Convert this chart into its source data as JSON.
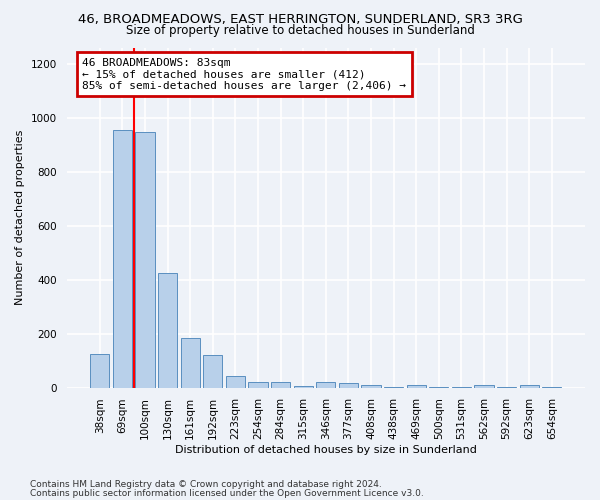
{
  "title_line1": "46, BROADMEADOWS, EAST HERRINGTON, SUNDERLAND, SR3 3RG",
  "title_line2": "Size of property relative to detached houses in Sunderland",
  "xlabel": "Distribution of detached houses by size in Sunderland",
  "ylabel": "Number of detached properties",
  "categories": [
    "38sqm",
    "69sqm",
    "100sqm",
    "130sqm",
    "161sqm",
    "192sqm",
    "223sqm",
    "254sqm",
    "284sqm",
    "315sqm",
    "346sqm",
    "377sqm",
    "408sqm",
    "438sqm",
    "469sqm",
    "500sqm",
    "531sqm",
    "562sqm",
    "592sqm",
    "623sqm",
    "654sqm"
  ],
  "values": [
    125,
    955,
    948,
    425,
    185,
    120,
    43,
    22,
    20,
    5,
    20,
    18,
    10,
    3,
    10,
    3,
    3,
    10,
    3,
    10,
    3
  ],
  "bar_color": "#b8d0ea",
  "bar_edge_color": "#5a8fc0",
  "red_line_x": 1.5,
  "annotation_text_line1": "46 BROADMEADOWS: 83sqm",
  "annotation_text_line2": "← 15% of detached houses are smaller (412)",
  "annotation_text_line3": "85% of semi-detached houses are larger (2,406) →",
  "annotation_box_color": "#ffffff",
  "annotation_box_edge_color": "#cc0000",
  "ylim": [
    0,
    1260
  ],
  "yticks": [
    0,
    200,
    400,
    600,
    800,
    1000,
    1200
  ],
  "footer_line1": "Contains HM Land Registry data © Crown copyright and database right 2024.",
  "footer_line2": "Contains public sector information licensed under the Open Government Licence v3.0.",
  "background_color": "#eef2f8",
  "plot_bg_color": "#eef2f8",
  "grid_color": "#ffffff",
  "title_fontsize": 9.5,
  "subtitle_fontsize": 8.5,
  "axis_label_fontsize": 8,
  "tick_fontsize": 7.5,
  "annotation_fontsize": 8
}
